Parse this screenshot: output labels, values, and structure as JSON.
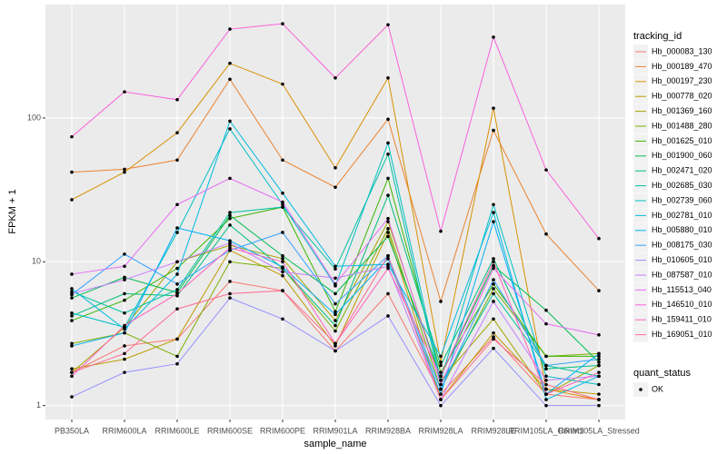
{
  "chart_data": {
    "type": "line",
    "x_label": "sample_name",
    "y_label": "FPKM + 1",
    "legend_title": "tracking_id",
    "shape_legend": {
      "title": "quant_status",
      "entries": [
        "OK"
      ]
    },
    "log_y": true,
    "grid": true,
    "ylim": [
      0.8,
      615
    ],
    "yticks": [
      1,
      10,
      100
    ],
    "categories": [
      "PB350LA",
      "RRIM600LA",
      "RRIM600LE",
      "RRIM600SE",
      "RRIM600PE",
      "RRIM901LA",
      "RRIM928BA",
      "RRIM928LA",
      "RRIM928LE",
      "RRIM105LA_Control",
      "RRIM105LA_Stressed"
    ],
    "series": [
      {
        "name": "Hb_000083_130",
        "color": "#F8766D",
        "values": [
          1.7,
          2.6,
          2.9,
          7.3,
          6.3,
          2.4,
          6,
          1.2,
          3,
          1.2,
          1.1
        ]
      },
      {
        "name": "Hb_000189_470",
        "color": "#EA8331",
        "values": [
          42,
          44,
          51,
          186,
          51,
          33,
          98,
          5.3,
          82,
          15.6,
          6.3
        ]
      },
      {
        "name": "Hb_000197_230",
        "color": "#D89000",
        "values": [
          27,
          42,
          79,
          240,
          172,
          45,
          190,
          2,
          117,
          1.3,
          1.1
        ]
      },
      {
        "name": "Hb_000778_020",
        "color": "#C09B00",
        "values": [
          1.8,
          2.1,
          2.9,
          12,
          8,
          2.6,
          16,
          1.1,
          3.2,
          1.3,
          1.2
        ]
      },
      {
        "name": "Hb_001369_160",
        "color": "#A3A500",
        "values": [
          1.7,
          3.5,
          10,
          13,
          10.5,
          3.9,
          19,
          1.5,
          4,
          1.2,
          1.9
        ]
      },
      {
        "name": "Hb_001488_280",
        "color": "#7CAE00",
        "values": [
          2.7,
          3.2,
          2.2,
          10,
          9,
          3.3,
          17,
          1.3,
          6.5,
          2.2,
          2.3
        ]
      },
      {
        "name": "Hb_001625_010",
        "color": "#39B600",
        "values": [
          3.9,
          5.4,
          9,
          20,
          24,
          4.5,
          38,
          1.7,
          7,
          2.2,
          2.2
        ]
      },
      {
        "name": "Hb_001900_060",
        "color": "#00BB4E",
        "values": [
          5.6,
          7.8,
          6.1,
          21,
          11,
          6,
          15,
          1.6,
          9.4,
          4.6,
          2
        ]
      },
      {
        "name": "Hb_002471_020",
        "color": "#00BF7D",
        "values": [
          4.2,
          6,
          5.8,
          18,
          9,
          3.6,
          29,
          1.9,
          10.5,
          1.8,
          1.9
        ]
      },
      {
        "name": "Hb_002685_030",
        "color": "#00C1A3",
        "values": [
          6.2,
          4.4,
          6.4,
          22,
          24,
          8.9,
          56,
          1.4,
          6,
          1.9,
          1.6
        ]
      },
      {
        "name": "Hb_002739_060",
        "color": "#00BFC4",
        "values": [
          4.4,
          3.5,
          16,
          84,
          25,
          6.8,
          67,
          1.5,
          25,
          1.6,
          1.4
        ]
      },
      {
        "name": "Hb_002781_010",
        "color": "#00BAE0",
        "values": [
          6.5,
          3.4,
          8.2,
          95,
          30,
          9.3,
          9.6,
          2.2,
          22,
          1.1,
          1.6
        ]
      },
      {
        "name": "Hb_005880_010",
        "color": "#00B0F6",
        "values": [
          2.6,
          3.2,
          17.2,
          14,
          9.2,
          4.3,
          10.5,
          1.2,
          19,
          1.2,
          2.3
        ]
      },
      {
        "name": "Hb_008175_030",
        "color": "#35A2FF",
        "values": [
          5.9,
          11.3,
          7,
          12,
          16,
          5.1,
          11,
          1.3,
          7.5,
          1.9,
          2.1
        ]
      },
      {
        "name": "Hb_010605_010",
        "color": "#9590FF",
        "values": [
          1.15,
          1.7,
          1.95,
          5.6,
          4,
          2.4,
          4.2,
          1,
          2.5,
          1,
          1
        ]
      },
      {
        "name": "Hb_087587_010",
        "color": "#C77CFF",
        "values": [
          6,
          7.5,
          10,
          13.5,
          8.5,
          7.7,
          9.3,
          1.1,
          5.3,
          1.5,
          1.6
        ]
      },
      {
        "name": "Hb_115513_040",
        "color": "#E76BF3",
        "values": [
          8.2,
          9.3,
          25,
          38,
          26,
          7,
          20,
          1.4,
          9,
          3.7,
          3.1
        ]
      },
      {
        "name": "Hb_146510_010",
        "color": "#FA62DB",
        "values": [
          74,
          152,
          134,
          415,
          452,
          190,
          445,
          16.3,
          365,
          43.5,
          14.5
        ]
      },
      {
        "name": "Hb_159411_010",
        "color": "#FF62BC",
        "values": [
          1.6,
          3.6,
          6,
          12.5,
          10,
          2.7,
          9,
          1.6,
          10,
          1.2,
          1.7
        ]
      },
      {
        "name": "Hb_169051_010",
        "color": "#FF6C91",
        "values": [
          1.7,
          2.3,
          4.7,
          6,
          6.3,
          2.7,
          11,
          1.1,
          2.9,
          1.4,
          1.1
        ]
      }
    ]
  }
}
